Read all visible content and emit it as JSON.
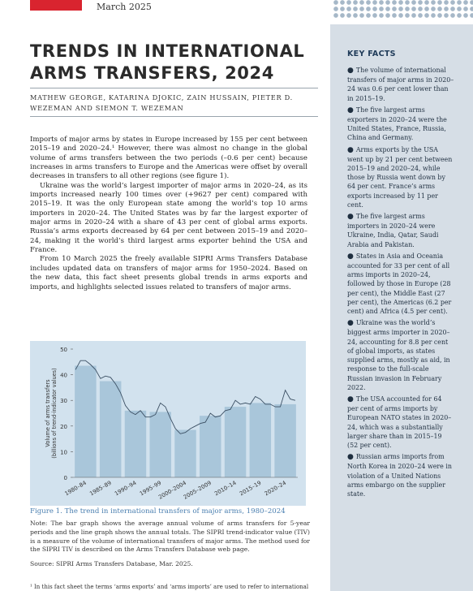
{
  "header": {
    "date": "March 2025"
  },
  "title": "TRENDS IN INTERNATIONAL ARMS TRANSFERS, 2024",
  "authors": "MATHEW GEORGE, KATARINA DJOKIC, ZAIN HUSSAIN, PIETER D. WEZEMAN AND SIEMON T. WEZEMAN",
  "body": [
    "Imports of major arms by states in Europe increased by 155 per cent between 2015–19 and 2020–24.¹ However, there was almost no change in the global volume of arms transfers between the two periods (–0.6 per cent) because increases in arms transfers to Europe and the Americas were offset by overall decreases in transfers to all other regions (see figure 1).",
    "Ukraine was the world’s largest importer of major arms in 2020–24, as its imports increased nearly 100 times over (+9627 per cent) compared with 2015–19. It was the only European state among the world’s top 10 arms importers in 2020–24. The United States was by far the largest exporter of major arms in 2020–24 with a share of 43 per cent of global arms exports. Russia’s arms exports decreased by 64 per cent between 2015–19 and 2020–24, making it the world’s third largest arms exporter behind the USA and France.",
    "From 10 March 2025 the freely available SIPRI Arms Transfers Database includes updated data on transfers of major arms for 1950–2024. Based on the new data, this fact sheet presents global trends in arms exports and imports, and highlights selected issues related to transfers of major arms."
  ],
  "key_facts": {
    "title": "KEY FACTS",
    "bullet": "●",
    "items": [
      "The volume of international transfers of major arms in 2020–24 was 0.6 per cent lower than in 2015–19.",
      "The five largest arms exporters in 2020–24 were the United States, France, Russia, China and Germany.",
      "Arms exports by the USA went up by 21 per cent between 2015–19 and 2020–24, while those by Russia went down by 64 per cent. France’s arms exports increased by 11 per cent.",
      "The five largest arms importers in 2020–24 were Ukraine, India, Qatar, Saudi Arabia and Pakistan.",
      "States in Asia and Oceania accounted for 33 per cent of all arms imports in 2020–24, followed by those in Europe (28 per cent), the Middle East (27 per cent), the Americas (6.2 per cent) and Africa (4.5 per cent).",
      "Ukraine was the world’s biggest arms importer in 2020–24, accounting for 8.8 per cent of global imports, as states supplied arms, mostly as aid, in response to the full-scale Russian invasion in February 2022.",
      "The USA accounted for 64 per cent of arms imports by European NATO states in 2020–24, which was a substantially larger share than in 2015–19 (52 per cent).",
      "Russian arms imports from North Korea in 2020–24 were in violation of a United Nations arms embargo on the supplier state."
    ]
  },
  "chart_data": {
    "type": "bar",
    "ylabel": "Volume of arms transfers (billions of trend-indicator values)",
    "ylim": [
      0,
      50
    ],
    "yticks": [
      0,
      10,
      20,
      30,
      40,
      50
    ],
    "categories": [
      "1980–84",
      "1985–89",
      "1990–94",
      "1995–99",
      "2000–2004",
      "2005–2009",
      "2010–14",
      "2015–19",
      "2020–24"
    ],
    "values": [
      43.5,
      37.5,
      26,
      25.5,
      18.5,
      24,
      27.5,
      29,
      28.5
    ],
    "line": {
      "x": [
        1980,
        1981,
        1982,
        1983,
        1984,
        1985,
        1986,
        1987,
        1988,
        1989,
        1990,
        1991,
        1992,
        1993,
        1994,
        1995,
        1996,
        1997,
        1998,
        1999,
        2000,
        2001,
        2002,
        2003,
        2004,
        2005,
        2006,
        2007,
        2008,
        2009,
        2010,
        2011,
        2012,
        2013,
        2014,
        2015,
        2016,
        2017,
        2018,
        2019,
        2020,
        2021,
        2022,
        2023,
        2024
      ],
      "y": [
        42,
        45.5,
        45.5,
        44,
        42,
        38.5,
        39.5,
        39,
        36.5,
        33,
        28,
        25.5,
        24.5,
        26,
        23.5,
        23.5,
        24.5,
        29,
        27.5,
        23,
        19,
        17,
        17.5,
        19,
        20,
        21,
        21.5,
        25,
        23.5,
        24,
        26,
        26.5,
        30,
        28.5,
        29,
        28.5,
        31.5,
        30.5,
        28.5,
        28.5,
        27.5,
        27.5,
        34,
        30.5,
        30
      ]
    },
    "bar_color": "#a9c6da",
    "line_color": "#3b4f63",
    "background": "#d2e2ee"
  },
  "figure": {
    "caption": "Figure 1. The trend in international transfers of major arms, 1980–2024",
    "note": "Note: The bar graph shows the average annual volume of arms transfers for 5-year periods and the line graph shows the annual totals. The SIPRI trend-indicator value (TIV) is a measure of the volume of international transfers of major arms. The method used for the SIPRI TIV is described on the Arms Transfers Database web page.",
    "source": "Source: SIPRI Arms Transfers Database, Mar. 2025."
  },
  "footnote": "¹ In this fact sheet the terms ‘arms exports’ and ‘arms imports’ are used to refer to international"
}
